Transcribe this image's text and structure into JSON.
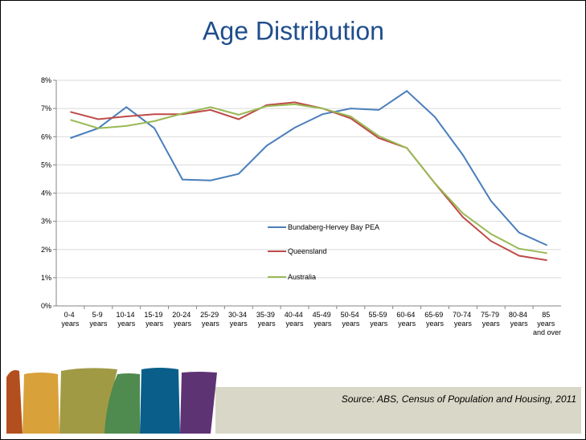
{
  "chart_data": {
    "type": "line",
    "title": "Age Distribution",
    "categories": [
      "0-4 years",
      "5-9 years",
      "10-14 years",
      "15-19 years",
      "20-24 years",
      "25-29 years",
      "30-34 years",
      "35-39 years",
      "40-44 years",
      "45-49 years",
      "50-54 years",
      "55-59 years",
      "60-64 years",
      "65-69 years",
      "70-74 years",
      "75-79 years",
      "80-84 years",
      "85 years and over"
    ],
    "series": [
      {
        "name": "Bundaberg-Hervey Bay PEA",
        "color": "#4a7ebb",
        "values": [
          5.95,
          6.3,
          7.05,
          6.3,
          4.48,
          4.45,
          4.68,
          5.68,
          6.32,
          6.8,
          7.0,
          6.95,
          7.62,
          6.7,
          5.35,
          3.72,
          2.6,
          2.15
        ]
      },
      {
        "name": "Queensland",
        "color": "#be4b48",
        "values": [
          6.88,
          6.62,
          6.72,
          6.8,
          6.8,
          6.95,
          6.62,
          7.12,
          7.22,
          7.0,
          6.65,
          5.95,
          5.6,
          4.35,
          3.15,
          2.3,
          1.78,
          1.62
        ]
      },
      {
        "name": "Australia",
        "color": "#98b954",
        "values": [
          6.6,
          6.3,
          6.38,
          6.55,
          6.82,
          7.05,
          6.78,
          7.08,
          7.15,
          7.0,
          6.72,
          6.02,
          5.6,
          4.35,
          3.28,
          2.55,
          2.03,
          1.87
        ]
      }
    ],
    "ylim": [
      0,
      8
    ],
    "yticks": [
      {
        "value": 0,
        "label": "0%"
      },
      {
        "value": 1,
        "label": "1%"
      },
      {
        "value": 2,
        "label": "2%"
      },
      {
        "value": 3,
        "label": "3%"
      },
      {
        "value": 4,
        "label": "4%"
      },
      {
        "value": 5,
        "label": "5%"
      },
      {
        "value": 6,
        "label": "6%"
      },
      {
        "value": 7,
        "label": "7%"
      },
      {
        "value": 8,
        "label": "8%"
      }
    ],
    "grid": true,
    "source": "Source: ABS, Census of Population and Housing, 2011"
  }
}
